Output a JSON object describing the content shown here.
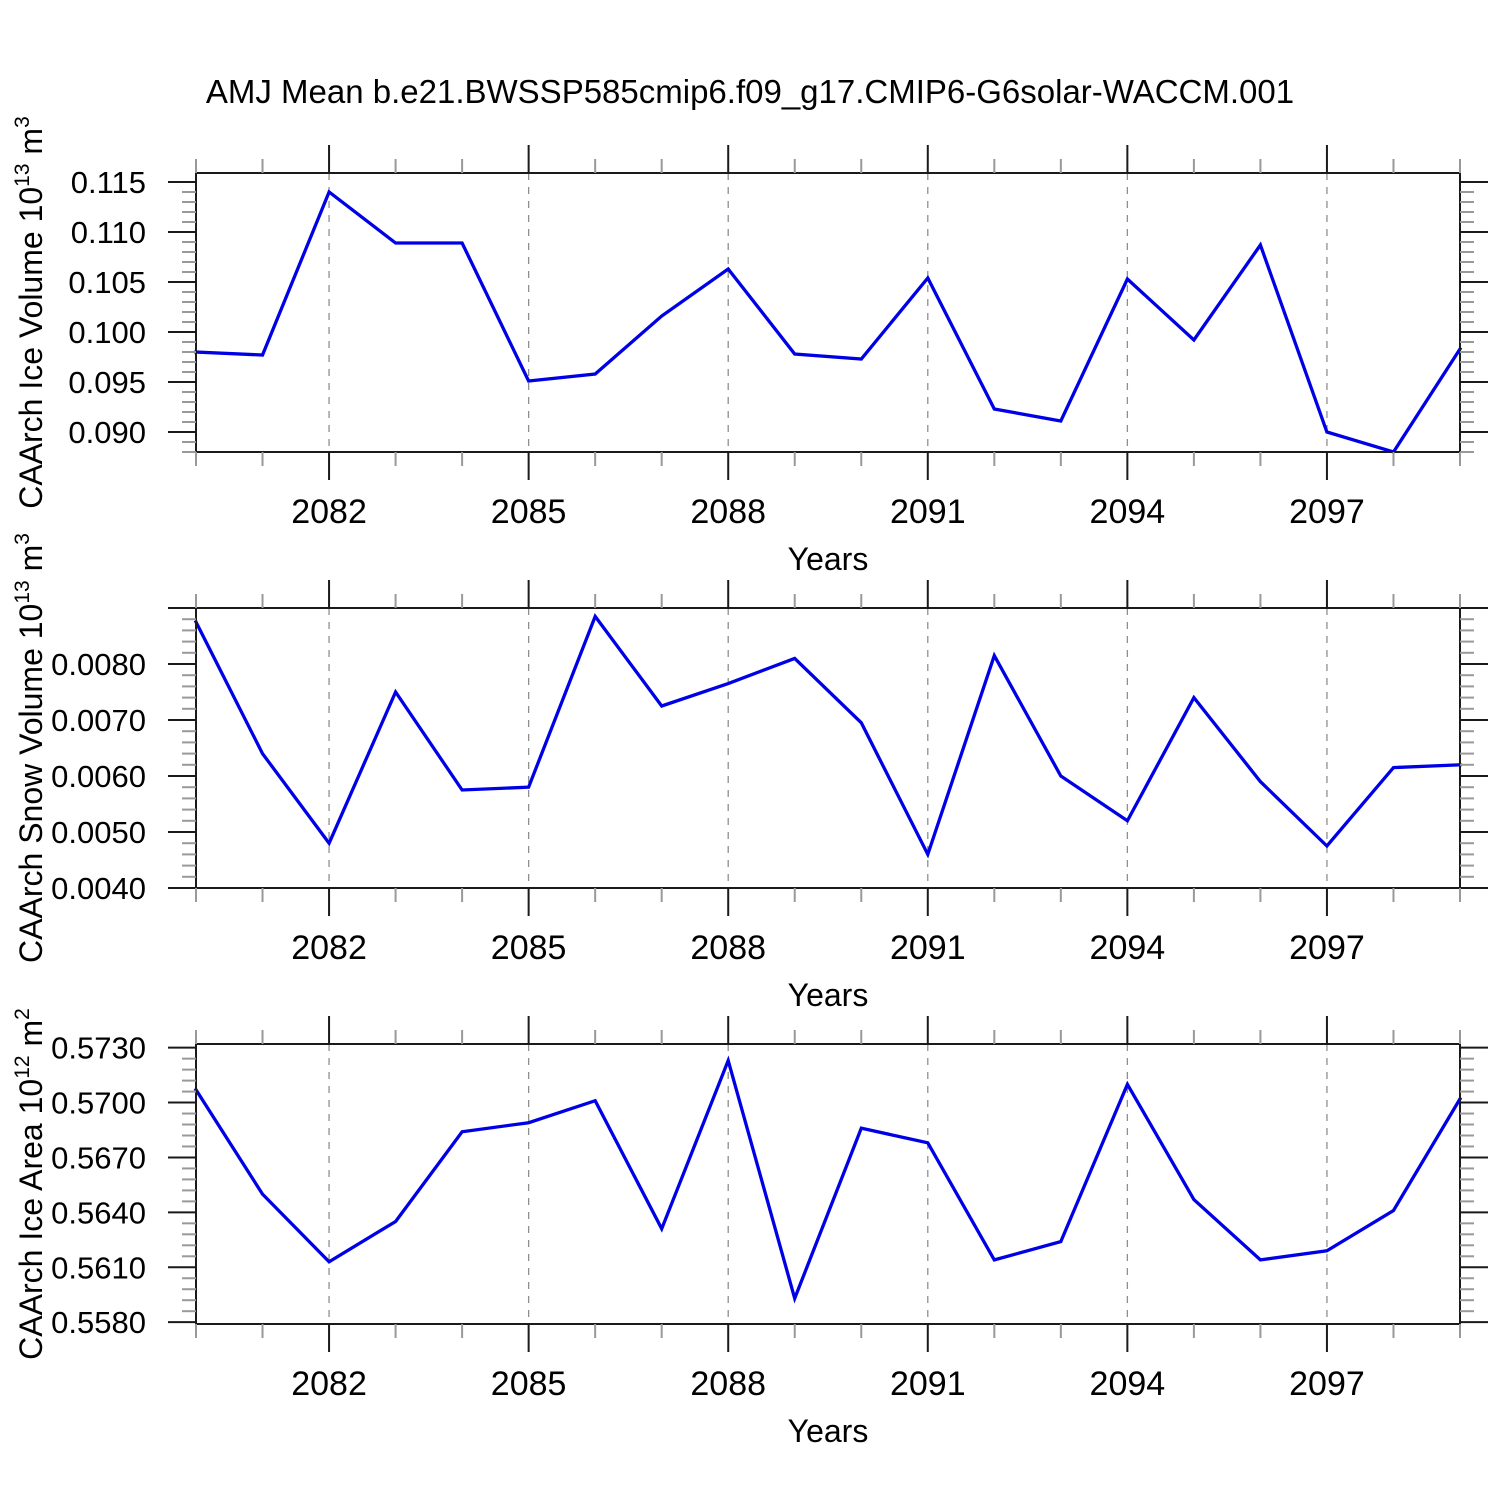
{
  "figure": {
    "title": "AMJ Mean b.e21.BWSSP585cmip6.f09_g17.CMIP6-G6solar-WACCM.001",
    "background": "#ffffff",
    "line_color": "#0000e6",
    "axis_color": "#1a1a1a",
    "minor_tick_color": "#999999",
    "gridline_color": "#8f8f8f",
    "text_color": "#000000"
  },
  "chart_data": [
    {
      "id": "ice-volume",
      "type": "line",
      "ylabel": "CAArch Ice Volume 10^13 m^3",
      "ylabel_parts": [
        "CAArch Ice Volume 10",
        "13",
        " m",
        "3"
      ],
      "xlabel": "Years",
      "legend": "none",
      "grid": "vertical-dashed-at-major-xticks",
      "years": [
        2080,
        2081,
        2082,
        2083,
        2084,
        2085,
        2086,
        2087,
        2088,
        2089,
        2090,
        2091,
        2092,
        2093,
        2094,
        2095,
        2096,
        2097,
        2098,
        2099
      ],
      "values": [
        0.098,
        0.0977,
        0.114,
        0.1089,
        0.1089,
        0.0951,
        0.0958,
        0.1016,
        0.1063,
        0.0978,
        0.0973,
        0.1054,
        0.0923,
        0.0911,
        0.1053,
        0.0992,
        0.1087,
        0.09,
        0.088,
        0.0983
      ],
      "xlim": [
        2080,
        2099
      ],
      "ylim": [
        0.088,
        0.1159
      ],
      "xticks": [
        2082,
        2085,
        2088,
        2091,
        2094,
        2097
      ],
      "xtick_labels": [
        "2082",
        "2085",
        "2088",
        "2091",
        "2094",
        "2097"
      ],
      "yticks": [
        0.09,
        0.095,
        0.1,
        0.105,
        0.11,
        0.115
      ],
      "ytick_labels": [
        "0.090",
        "0.095",
        "0.100",
        "0.105",
        "0.110",
        "0.115"
      ],
      "y_minor_step": 0.001,
      "x_minor_step": 1
    },
    {
      "id": "snow-volume",
      "type": "line",
      "ylabel": "CAArch Snow Volume 10^13 m^3",
      "ylabel_parts": [
        "CAArch Snow Volume 10",
        "13",
        " m",
        "3"
      ],
      "xlabel": "Years",
      "legend": "none",
      "grid": "vertical-dashed-at-major-xticks",
      "years": [
        2080,
        2081,
        2082,
        2083,
        2084,
        2085,
        2086,
        2087,
        2088,
        2089,
        2090,
        2091,
        2092,
        2093,
        2094,
        2095,
        2096,
        2097,
        2098,
        2099
      ],
      "values": [
        0.00875,
        0.0064,
        0.0048,
        0.0075,
        0.00575,
        0.0058,
        0.00885,
        0.00725,
        0.00765,
        0.0081,
        0.00695,
        0.0046,
        0.00815,
        0.006,
        0.0052,
        0.0074,
        0.0059,
        0.00475,
        0.00615,
        0.0062
      ],
      "xlim": [
        2080,
        2099
      ],
      "ylim": [
        0.004,
        0.009
      ],
      "xticks": [
        2082,
        2085,
        2088,
        2091,
        2094,
        2097
      ],
      "xtick_labels": [
        "2082",
        "2085",
        "2088",
        "2091",
        "2094",
        "2097"
      ],
      "yticks": [
        0.004,
        0.005,
        0.006,
        0.007,
        0.008,
        0.009
      ],
      "ytick_labels": [
        "0.0040",
        "0.0050",
        "0.0060",
        "0.0070",
        "0.0080",
        ""
      ],
      "y_minor_step": 0.0002,
      "x_minor_step": 1
    },
    {
      "id": "ice-area",
      "type": "line",
      "ylabel": "CAArch Ice Area 10^12 m^2",
      "ylabel_parts": [
        "CAArch Ice Area 10",
        "12",
        " m",
        "2"
      ],
      "xlabel": "Years",
      "legend": "none",
      "grid": "vertical-dashed-at-major-xticks",
      "years": [
        2080,
        2081,
        2082,
        2083,
        2084,
        2085,
        2086,
        2087,
        2088,
        2089,
        2090,
        2091,
        2092,
        2093,
        2094,
        2095,
        2096,
        2097,
        2098,
        2099
      ],
      "values": [
        0.5707,
        0.565,
        0.5613,
        0.5635,
        0.5684,
        0.5689,
        0.5701,
        0.5631,
        0.5723,
        0.5593,
        0.5686,
        0.5678,
        0.5614,
        0.5624,
        0.571,
        0.5647,
        0.5614,
        0.5619,
        0.5641,
        0.5702
      ],
      "xlim": [
        2080,
        2099
      ],
      "ylim": [
        0.5579,
        0.5732
      ],
      "xticks": [
        2082,
        2085,
        2088,
        2091,
        2094,
        2097
      ],
      "xtick_labels": [
        "2082",
        "2085",
        "2088",
        "2091",
        "2094",
        "2097"
      ],
      "yticks": [
        0.558,
        0.561,
        0.564,
        0.567,
        0.57,
        0.573
      ],
      "ytick_labels": [
        "0.5580",
        "0.5610",
        "0.5640",
        "0.5670",
        "0.5700",
        "0.5730"
      ],
      "y_minor_step": 0.0006,
      "x_minor_step": 1
    }
  ]
}
